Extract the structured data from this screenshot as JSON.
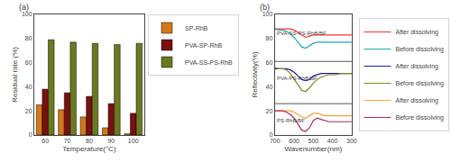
{
  "chart_data": [
    {
      "type": "bar",
      "title": "(a)",
      "categories": [
        "60",
        "70",
        "80",
        "90",
        "100"
      ],
      "series": [
        {
          "name": "SP-RhB",
          "color": "#D4781A",
          "values": [
            25,
            21,
            15,
            6,
            1
          ]
        },
        {
          "name": "PVA-SP-RhB",
          "color": "#7A1010",
          "values": [
            38,
            35,
            32,
            26,
            18
          ]
        },
        {
          "name": "PVA-SS-PS-RhB",
          "color": "#6B7A20",
          "values": [
            79,
            77,
            76,
            75,
            76
          ]
        }
      ],
      "xlabel": "Temperature(°C)",
      "ylabel": "Residual rate (%)",
      "ylim": [
        0,
        100
      ],
      "yticks": [
        0,
        20,
        40,
        60,
        80,
        100
      ],
      "legend": "upper right",
      "grid": false
    },
    {
      "type": "line",
      "title": "(b)",
      "x": [
        700,
        680,
        660,
        640,
        620,
        600,
        580,
        560,
        540,
        520,
        500,
        480,
        460,
        440,
        420,
        400,
        380,
        360,
        340,
        320,
        300
      ],
      "series": [
        {
          "name": "After dissolving",
          "color": "#FF3030",
          "values": [
            88,
            88,
            88,
            88,
            88,
            87,
            85,
            83,
            81,
            82,
            83,
            83,
            83,
            83,
            83,
            83,
            83,
            83,
            83,
            83,
            83
          ]
        },
        {
          "name": "Before dissolving",
          "color": "#20A8A8",
          "values": [
            88,
            87,
            87,
            86,
            84,
            81,
            77,
            73,
            72,
            74,
            76,
            77,
            77,
            77,
            77,
            77,
            77,
            77,
            77,
            77,
            77
          ]
        },
        {
          "name": "After dissolving",
          "color": "#1818B0",
          "values": [
            55,
            55,
            55,
            55,
            54,
            52,
            49,
            46,
            45,
            46,
            49,
            50,
            51,
            51,
            51,
            51,
            51,
            51,
            51,
            51,
            51
          ]
        },
        {
          "name": "Before dissolving",
          "color": "#888818",
          "values": [
            56,
            55,
            55,
            54,
            51,
            46,
            41,
            37,
            36,
            39,
            43,
            46,
            48,
            49,
            50,
            50,
            50,
            51,
            51,
            51,
            51
          ]
        },
        {
          "name": "After dissolving",
          "color": "#FFA030",
          "values": [
            20,
            20,
            20,
            20,
            20,
            19,
            17,
            15,
            14,
            16,
            18,
            18,
            17,
            16,
            16,
            16,
            16,
            16,
            16,
            16,
            16
          ]
        },
        {
          "name": "Before dissolving",
          "color": "#B02860",
          "values": [
            20,
            20,
            20,
            19,
            17,
            14,
            9,
            4,
            3,
            6,
            12,
            14,
            13,
            12,
            11,
            11,
            11,
            11,
            11,
            11,
            11
          ]
        }
      ],
      "xlabel": "Wavenumber(nm)",
      "ylabel": "Reflectivity(%)",
      "xlim": [
        700,
        300
      ],
      "xticks": [
        700,
        600,
        500,
        400,
        300
      ],
      "ylim": [
        0,
        100
      ],
      "yticks": [
        0,
        20,
        40,
        60,
        80,
        100
      ],
      "hlines": [
        26,
        61
      ],
      "annotations": [
        {
          "text": "PVA-SS-PS-RhB/BF",
          "x": 697,
          "y": 84
        },
        {
          "text": "PVA-PS-RhB/BF",
          "x": 697,
          "y": 47
        },
        {
          "text": "PS-RhB/BF",
          "x": 697,
          "y": 12
        }
      ],
      "legend": "right",
      "grid": false
    }
  ]
}
